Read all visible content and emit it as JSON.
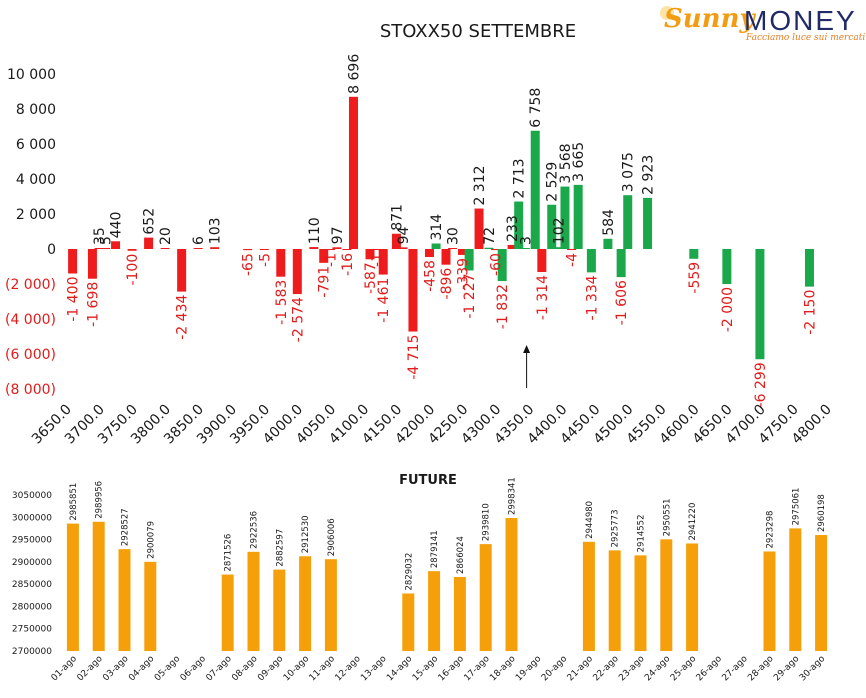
{
  "logo": {
    "sunny": "Sunny",
    "money": "MONEY",
    "tagline": "Facciamo luce sui mercati"
  },
  "chart_data": [
    {
      "type": "bar",
      "title": "STOXX50 SETTEMBRE",
      "y_ticks": [
        "10 000",
        "8 000",
        "6 000",
        "4 000",
        "2 000",
        "0",
        "(2 000)",
        "(4 000)",
        "(6 000)",
        "(8 000)"
      ],
      "ylim": [
        -8000,
        10000
      ],
      "x_ticks": [
        "3650.0",
        "3700.0",
        "3750.0",
        "3800.0",
        "3850.0",
        "3900.0",
        "3950.0",
        "4000.0",
        "4050.0",
        "4100.0",
        "4150.0",
        "4200.0",
        "4250.0",
        "4300.0",
        "4350.0",
        "4400.0",
        "4450.0",
        "4500.0",
        "4550.0",
        "4600.0",
        "4650.0",
        "4700.0",
        "4750.0",
        "4800.0"
      ],
      "xlim": [
        3650,
        4800
      ],
      "marker_strike": 4350,
      "colors": {
        "call_side": "#ee1c1c",
        "put_side": "#1aa84b"
      },
      "bars": [
        {
          "x": 3660,
          "value": -1400,
          "label": "-1 400",
          "color": "#ee1c1c"
        },
        {
          "x": 3690,
          "value": -1698,
          "label": "-1 698",
          "color": "#ee1c1c"
        },
        {
          "x": 3700,
          "value": 35,
          "label": "35",
          "color": "#ee1c1c"
        },
        {
          "x": 3710,
          "value": 5,
          "label": "5",
          "color": "#ee1c1c"
        },
        {
          "x": 3725,
          "value": 440,
          "label": "440",
          "color": "#ee1c1c"
        },
        {
          "x": 3750,
          "value": -100,
          "label": "-100",
          "color": "#ee1c1c"
        },
        {
          "x": 3775,
          "value": 652,
          "label": "652",
          "color": "#ee1c1c"
        },
        {
          "x": 3800,
          "value": 20,
          "label": "20",
          "color": "#ee1c1c"
        },
        {
          "x": 3825,
          "value": -2434,
          "label": "-2 434",
          "color": "#ee1c1c"
        },
        {
          "x": 3850,
          "value": 6,
          "label": "6",
          "color": "#ee1c1c"
        },
        {
          "x": 3875,
          "value": 103,
          "label": "103",
          "color": "#ee1c1c"
        },
        {
          "x": 3925,
          "value": -65,
          "label": "-65",
          "color": "#ee1c1c"
        },
        {
          "x": 3950,
          "value": -5,
          "label": "-5",
          "color": "#ee1c1c"
        },
        {
          "x": 3975,
          "value": -1583,
          "label": "-1 583",
          "color": "#ee1c1c"
        },
        {
          "x": 4000,
          "value": -2574,
          "label": "-2 574",
          "color": "#ee1c1c"
        },
        {
          "x": 4025,
          "value": 110,
          "label": "110",
          "color": "#ee1c1c"
        },
        {
          "x": 4040,
          "value": -791,
          "label": "-791",
          "color": "#ee1c1c"
        },
        {
          "x": 4050,
          "value": -1,
          "label": "-1",
          "color": "#ee1c1c"
        },
        {
          "x": 4060,
          "value": 97,
          "label": "97",
          "color": "#ee1c1c"
        },
        {
          "x": 4075,
          "value": -16,
          "label": "-16",
          "color": "#ee1c1c"
        },
        {
          "x": 4085,
          "value": 8696,
          "label": "8 696",
          "color": "#ee1c1c"
        },
        {
          "x": 4110,
          "value": -587,
          "label": "-587",
          "color": "#ee1c1c"
        },
        {
          "x": 4120,
          "value": -1,
          "label": "-1",
          "color": "#ee1c1c"
        },
        {
          "x": 4130,
          "value": -1461,
          "label": "-1 461",
          "color": "#ee1c1c"
        },
        {
          "x": 4150,
          "value": 871,
          "label": "871",
          "color": "#ee1c1c"
        },
        {
          "x": 4160,
          "value": 94,
          "label": "94",
          "color": "#ee1c1c"
        },
        {
          "x": 4175,
          "value": -4715,
          "label": "-4 715",
          "color": "#ee1c1c"
        },
        {
          "x": 4200,
          "value": -458,
          "label": "-458",
          "color": "#ee1c1c"
        },
        {
          "x": 4210,
          "value": 314,
          "label": "314",
          "color": "#1aa84b"
        },
        {
          "x": 4225,
          "value": -896,
          "label": "-896",
          "color": "#ee1c1c"
        },
        {
          "x": 4235,
          "value": 30,
          "label": "30",
          "color": "#ee1c1c"
        },
        {
          "x": 4250,
          "value": -339,
          "label": "-339",
          "color": "#ee1c1c"
        },
        {
          "x": 4260,
          "value": -1227,
          "label": "-1 227",
          "color": "#1aa84b"
        },
        {
          "x": 4275,
          "value": 2312,
          "label": "2 312",
          "color": "#ee1c1c"
        },
        {
          "x": 4290,
          "value": 72,
          "label": "72",
          "color": "#1aa84b"
        },
        {
          "x": 4300,
          "value": -60,
          "label": "-60",
          "color": "#ee1c1c"
        },
        {
          "x": 4310,
          "value": -1832,
          "label": "-1 832",
          "color": "#1aa84b"
        },
        {
          "x": 4325,
          "value": 233,
          "label": "233",
          "color": "#ee1c1c"
        },
        {
          "x": 4335,
          "value": 2713,
          "label": "2 713",
          "color": "#1aa84b"
        },
        {
          "x": 4345,
          "value": 3,
          "label": "3",
          "color": "#1aa84b"
        },
        {
          "x": 4360,
          "value": 6758,
          "label": "6 758",
          "color": "#1aa84b"
        },
        {
          "x": 4370,
          "value": -1314,
          "label": "-1 314",
          "color": "#ee1c1c"
        },
        {
          "x": 4385,
          "value": 2529,
          "label": "2 529",
          "color": "#1aa84b"
        },
        {
          "x": 4395,
          "value": 102,
          "label": "102",
          "color": "#1aa84b"
        },
        {
          "x": 4405,
          "value": 3568,
          "label": "3 568",
          "color": "#1aa84b"
        },
        {
          "x": 4415,
          "value": -4,
          "label": "-4",
          "color": "#ee1c1c"
        },
        {
          "x": 4425,
          "value": 3665,
          "label": "3 665",
          "color": "#1aa84b"
        },
        {
          "x": 4445,
          "value": -1334,
          "label": "-1 334",
          "color": "#1aa84b"
        },
        {
          "x": 4470,
          "value": 584,
          "label": "584",
          "color": "#1aa84b"
        },
        {
          "x": 4490,
          "value": -1606,
          "label": "-1 606",
          "color": "#1aa84b"
        },
        {
          "x": 4500,
          "value": 3075,
          "label": "3 075",
          "color": "#1aa84b"
        },
        {
          "x": 4530,
          "value": 2923,
          "label": "2 923",
          "color": "#1aa84b"
        },
        {
          "x": 4600,
          "value": -559,
          "label": "-559",
          "color": "#1aa84b"
        },
        {
          "x": 4650,
          "value": -2000,
          "label": "-2 000",
          "color": "#1aa84b"
        },
        {
          "x": 4700,
          "value": -6299,
          "label": "-6 299",
          "color": "#1aa84b"
        },
        {
          "x": 4775,
          "value": -2150,
          "label": "-2 150",
          "color": "#1aa84b"
        }
      ]
    },
    {
      "type": "bar",
      "title": "FUTURE",
      "ylim": [
        2700000,
        3050000
      ],
      "y_ticks": [
        "3050000",
        "3000000",
        "2950000",
        "2900000",
        "2850000",
        "2800000",
        "2750000",
        "2700000"
      ],
      "bar_color": "#f5a00b",
      "categories": [
        "01-ago",
        "02-ago",
        "03-ago",
        "04-ago",
        "05-ago",
        "06-ago",
        "07-ago",
        "08-ago",
        "09-ago",
        "10-ago",
        "11-ago",
        "12-ago",
        "13-ago",
        "14-ago",
        "15-ago",
        "16-ago",
        "17-ago",
        "18-ago",
        "19-ago",
        "20-ago",
        "21-ago",
        "22-ago",
        "23-ago",
        "24-ago",
        "25-ago",
        "26-ago",
        "27-ago",
        "28-ago",
        "29-ago",
        "30-ago"
      ],
      "values": [
        2985851,
        2989956,
        2928527,
        2900079,
        null,
        null,
        2871526,
        2922536,
        2882597,
        2912530,
        2906006,
        null,
        null,
        2829032,
        2879141,
        2866024,
        2939810,
        2998341,
        null,
        null,
        2944980,
        2925773,
        2914552,
        2950551,
        2941220,
        null,
        null,
        2923298,
        2975061,
        2960198
      ],
      "value_labels": [
        "2985851",
        "2989956",
        "2928527",
        "2900079",
        "",
        "",
        "2871526",
        "2922536",
        "2882597",
        "2912530",
        "2906006",
        "",
        "",
        "2829032",
        "2879141",
        "2866024",
        "2939810",
        "2998341",
        "",
        "",
        "2944980",
        "2925773",
        "2914552",
        "2950551",
        "2941220",
        "",
        "",
        "2923298",
        "2975061",
        "2960198"
      ]
    }
  ]
}
